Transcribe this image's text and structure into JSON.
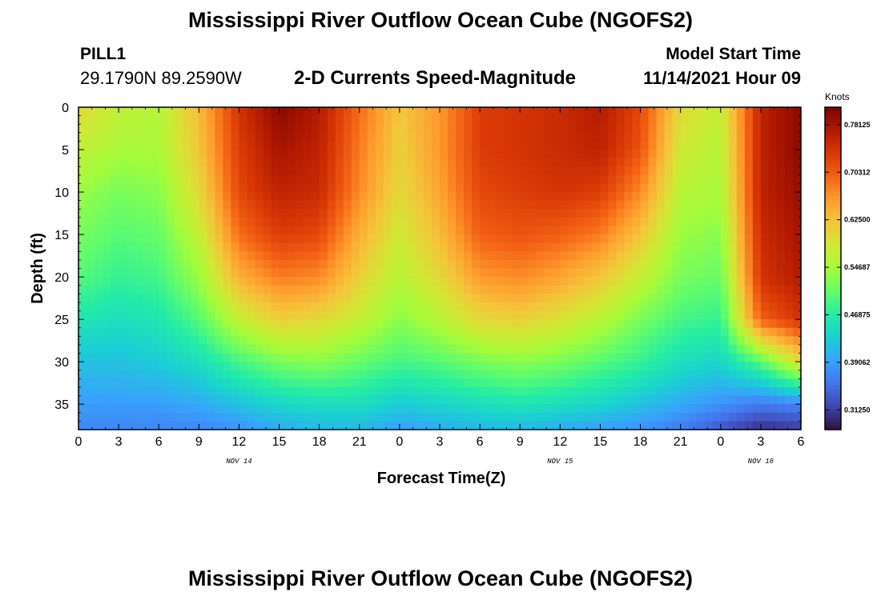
{
  "header": {
    "title": "Mississippi River Outflow Ocean Cube (NGOFS2)",
    "station_id": "PILL1",
    "station_coords": "29.1790N  89.2590W",
    "subtitle": "2-D Currents Speed-Magnitude",
    "start_label": "Model Start Time",
    "start_value": "11/14/2021 Hour 09"
  },
  "footer": {
    "title": "Mississippi River Outflow Ocean Cube (NGOFS2)"
  },
  "colorbar": {
    "unit": "Knots",
    "min": 0.28,
    "max": 0.81,
    "ticks": [
      0.3125,
      0.390625,
      0.46875,
      0.546875,
      0.625,
      0.703125,
      0.78125
    ],
    "tick_labels": [
      "0.31250",
      "0.39062",
      "0.46875",
      "0.54687",
      "0.62500",
      "0.70312",
      "0.78125"
    ],
    "colormap": [
      "#30123b",
      "#4145ab",
      "#4675ed",
      "#39a2fc",
      "#1bcfd4",
      "#24eca6",
      "#61fc6c",
      "#a4fc3b",
      "#d1e834",
      "#f3c63a",
      "#fe9b2d",
      "#f36315",
      "#d93806",
      "#b11901",
      "#7a0402"
    ]
  },
  "chart_data": {
    "type": "heatmap",
    "title": "2-D Currents Speed-Magnitude",
    "xlabel": "Forecast Time(Z)",
    "ylabel": "Depth (ft)",
    "x_range_hours": [
      0,
      54
    ],
    "y_range": [
      0,
      38
    ],
    "y_inverted": true,
    "x_tick_labels": [
      "0",
      "3",
      "6",
      "9",
      "12",
      "15",
      "18",
      "21",
      "0",
      "3",
      "6",
      "9",
      "12",
      "15",
      "18",
      "21",
      "0",
      "3",
      "6"
    ],
    "y_ticks": [
      0,
      5,
      10,
      15,
      20,
      25,
      30,
      35
    ],
    "date_labels": [
      {
        "text": "NOV 14",
        "at_hour": 12
      },
      {
        "text": "NOV 15",
        "at_hour": 36
      },
      {
        "text": "NOV 16",
        "at_hour": 51
      }
    ],
    "depths": [
      0,
      5,
      10,
      15,
      20,
      25,
      30,
      35,
      38
    ],
    "times": [
      0,
      3,
      6,
      9,
      12,
      15,
      18,
      21,
      24,
      27,
      30,
      33,
      36,
      39,
      42,
      45,
      48,
      51,
      54
    ],
    "speed_knots": [
      [
        0.6,
        0.57,
        0.56,
        0.63,
        0.74,
        0.8,
        0.77,
        0.69,
        0.62,
        0.66,
        0.73,
        0.74,
        0.75,
        0.77,
        0.72,
        0.6,
        0.57,
        0.76,
        0.8
      ],
      [
        0.57,
        0.55,
        0.55,
        0.62,
        0.73,
        0.78,
        0.76,
        0.68,
        0.61,
        0.66,
        0.73,
        0.74,
        0.75,
        0.76,
        0.71,
        0.58,
        0.56,
        0.76,
        0.8
      ],
      [
        0.54,
        0.52,
        0.53,
        0.6,
        0.72,
        0.76,
        0.75,
        0.67,
        0.6,
        0.65,
        0.72,
        0.73,
        0.74,
        0.73,
        0.67,
        0.56,
        0.55,
        0.76,
        0.79
      ],
      [
        0.52,
        0.5,
        0.51,
        0.57,
        0.69,
        0.73,
        0.72,
        0.64,
        0.58,
        0.63,
        0.7,
        0.71,
        0.7,
        0.68,
        0.62,
        0.54,
        0.53,
        0.75,
        0.78
      ],
      [
        0.5,
        0.48,
        0.49,
        0.54,
        0.64,
        0.68,
        0.67,
        0.61,
        0.56,
        0.6,
        0.66,
        0.67,
        0.65,
        0.62,
        0.57,
        0.52,
        0.51,
        0.74,
        0.77
      ],
      [
        0.46,
        0.45,
        0.46,
        0.5,
        0.57,
        0.61,
        0.6,
        0.57,
        0.53,
        0.56,
        0.6,
        0.61,
        0.59,
        0.56,
        0.52,
        0.49,
        0.48,
        0.7,
        0.74
      ],
      [
        0.42,
        0.42,
        0.43,
        0.45,
        0.49,
        0.52,
        0.53,
        0.51,
        0.49,
        0.5,
        0.52,
        0.53,
        0.52,
        0.5,
        0.48,
        0.45,
        0.44,
        0.5,
        0.6
      ],
      [
        0.39,
        0.39,
        0.39,
        0.4,
        0.42,
        0.44,
        0.45,
        0.45,
        0.43,
        0.44,
        0.45,
        0.46,
        0.45,
        0.44,
        0.42,
        0.4,
        0.38,
        0.36,
        0.37
      ],
      [
        0.37,
        0.37,
        0.37,
        0.37,
        0.38,
        0.4,
        0.41,
        0.41,
        0.39,
        0.4,
        0.41,
        0.41,
        0.4,
        0.39,
        0.38,
        0.36,
        0.33,
        0.3,
        0.31
      ]
    ]
  }
}
